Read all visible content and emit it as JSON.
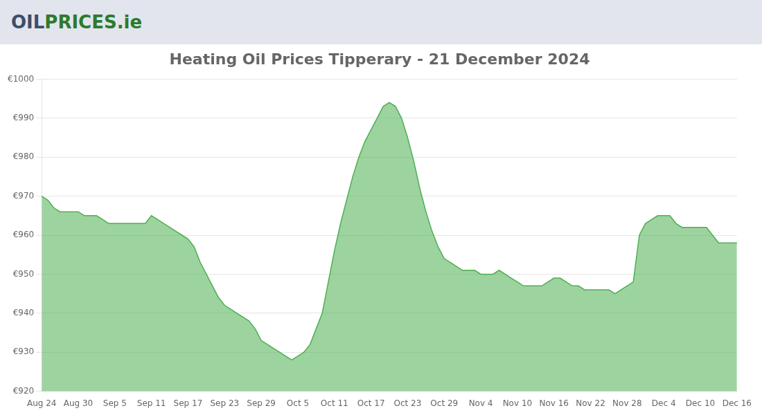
{
  "chart_data": {
    "type": "area",
    "title": "Heating Oil Prices Tipperary - 21 December 2024",
    "annotations": [
      {
        "text": "OIL",
        "color": "#3d4f6b"
      },
      {
        "text": "PRICES",
        "color": "#2d7a2d"
      },
      {
        "text": ".ie",
        "color": "#2d7a2d"
      }
    ],
    "color": "#4caf50",
    "categories": [
      "Aug 24",
      null,
      null,
      null,
      null,
      null,
      "Aug 30",
      null,
      null,
      null,
      null,
      null,
      "Sep 5",
      null,
      null,
      null,
      null,
      null,
      "Sep 11",
      null,
      null,
      null,
      null,
      null,
      "Sep 17",
      null,
      null,
      null,
      null,
      null,
      "Sep 23",
      null,
      null,
      null,
      null,
      null,
      "Sep 29",
      null,
      null,
      null,
      null,
      null,
      "Oct 5",
      null,
      null,
      null,
      null,
      null,
      "Oct 11",
      null,
      null,
      null,
      null,
      null,
      "Oct 17",
      null,
      null,
      null,
      null,
      null,
      "Oct 23",
      null,
      null,
      null,
      null,
      null,
      "Oct 29",
      null,
      null,
      null,
      null,
      null,
      "Nov 4",
      null,
      null,
      null,
      null,
      null,
      "Nov 10",
      null,
      null,
      null,
      null,
      null,
      "Nov 16",
      null,
      null,
      null,
      null,
      null,
      "Nov 22",
      null,
      null,
      null,
      null,
      null,
      "Nov 28",
      null,
      null,
      null,
      null,
      null,
      "Dec 4",
      null,
      null,
      null,
      null,
      null,
      "Dec 10",
      null,
      null,
      null,
      null,
      null,
      "Dec 16"
    ],
    "values": [
      970,
      969,
      967,
      966,
      966,
      966,
      966,
      965,
      965,
      965,
      964,
      963,
      963,
      963,
      963,
      963,
      963,
      963,
      965,
      964,
      963,
      962,
      961,
      960,
      959,
      957,
      953,
      950,
      947,
      944,
      942,
      941,
      940,
      939,
      938,
      936,
      933,
      932,
      931,
      930,
      929,
      928,
      929,
      930,
      932,
      936,
      940,
      948,
      956,
      963,
      969,
      975,
      980,
      984,
      987,
      990,
      993,
      994,
      993,
      990,
      985,
      979,
      972,
      966,
      961,
      957,
      954,
      953,
      952,
      951,
      951,
      951,
      950,
      950,
      950,
      951,
      950,
      949,
      948,
      947,
      947,
      947,
      947,
      948,
      949,
      949,
      948,
      947,
      947,
      946,
      946,
      946,
      946,
      946,
      945,
      946,
      947,
      948,
      960,
      963,
      964,
      965,
      965,
      965,
      963,
      962,
      962,
      962,
      962,
      962,
      960,
      958,
      958,
      958,
      958
    ],
    "ylim": [
      920,
      1000
    ],
    "yticks": [
      {
        "value": 920,
        "label": "€920"
      },
      {
        "value": 930,
        "label": "€930"
      },
      {
        "value": 940,
        "label": "€940"
      },
      {
        "value": 950,
        "label": "€950"
      },
      {
        "value": 960,
        "label": "€960"
      },
      {
        "value": 970,
        "label": "€970"
      },
      {
        "value": 980,
        "label": "€980"
      },
      {
        "value": 990,
        "label": "€990"
      },
      {
        "value": 1000,
        "label": "€1000"
      }
    ],
    "grid": "y"
  }
}
